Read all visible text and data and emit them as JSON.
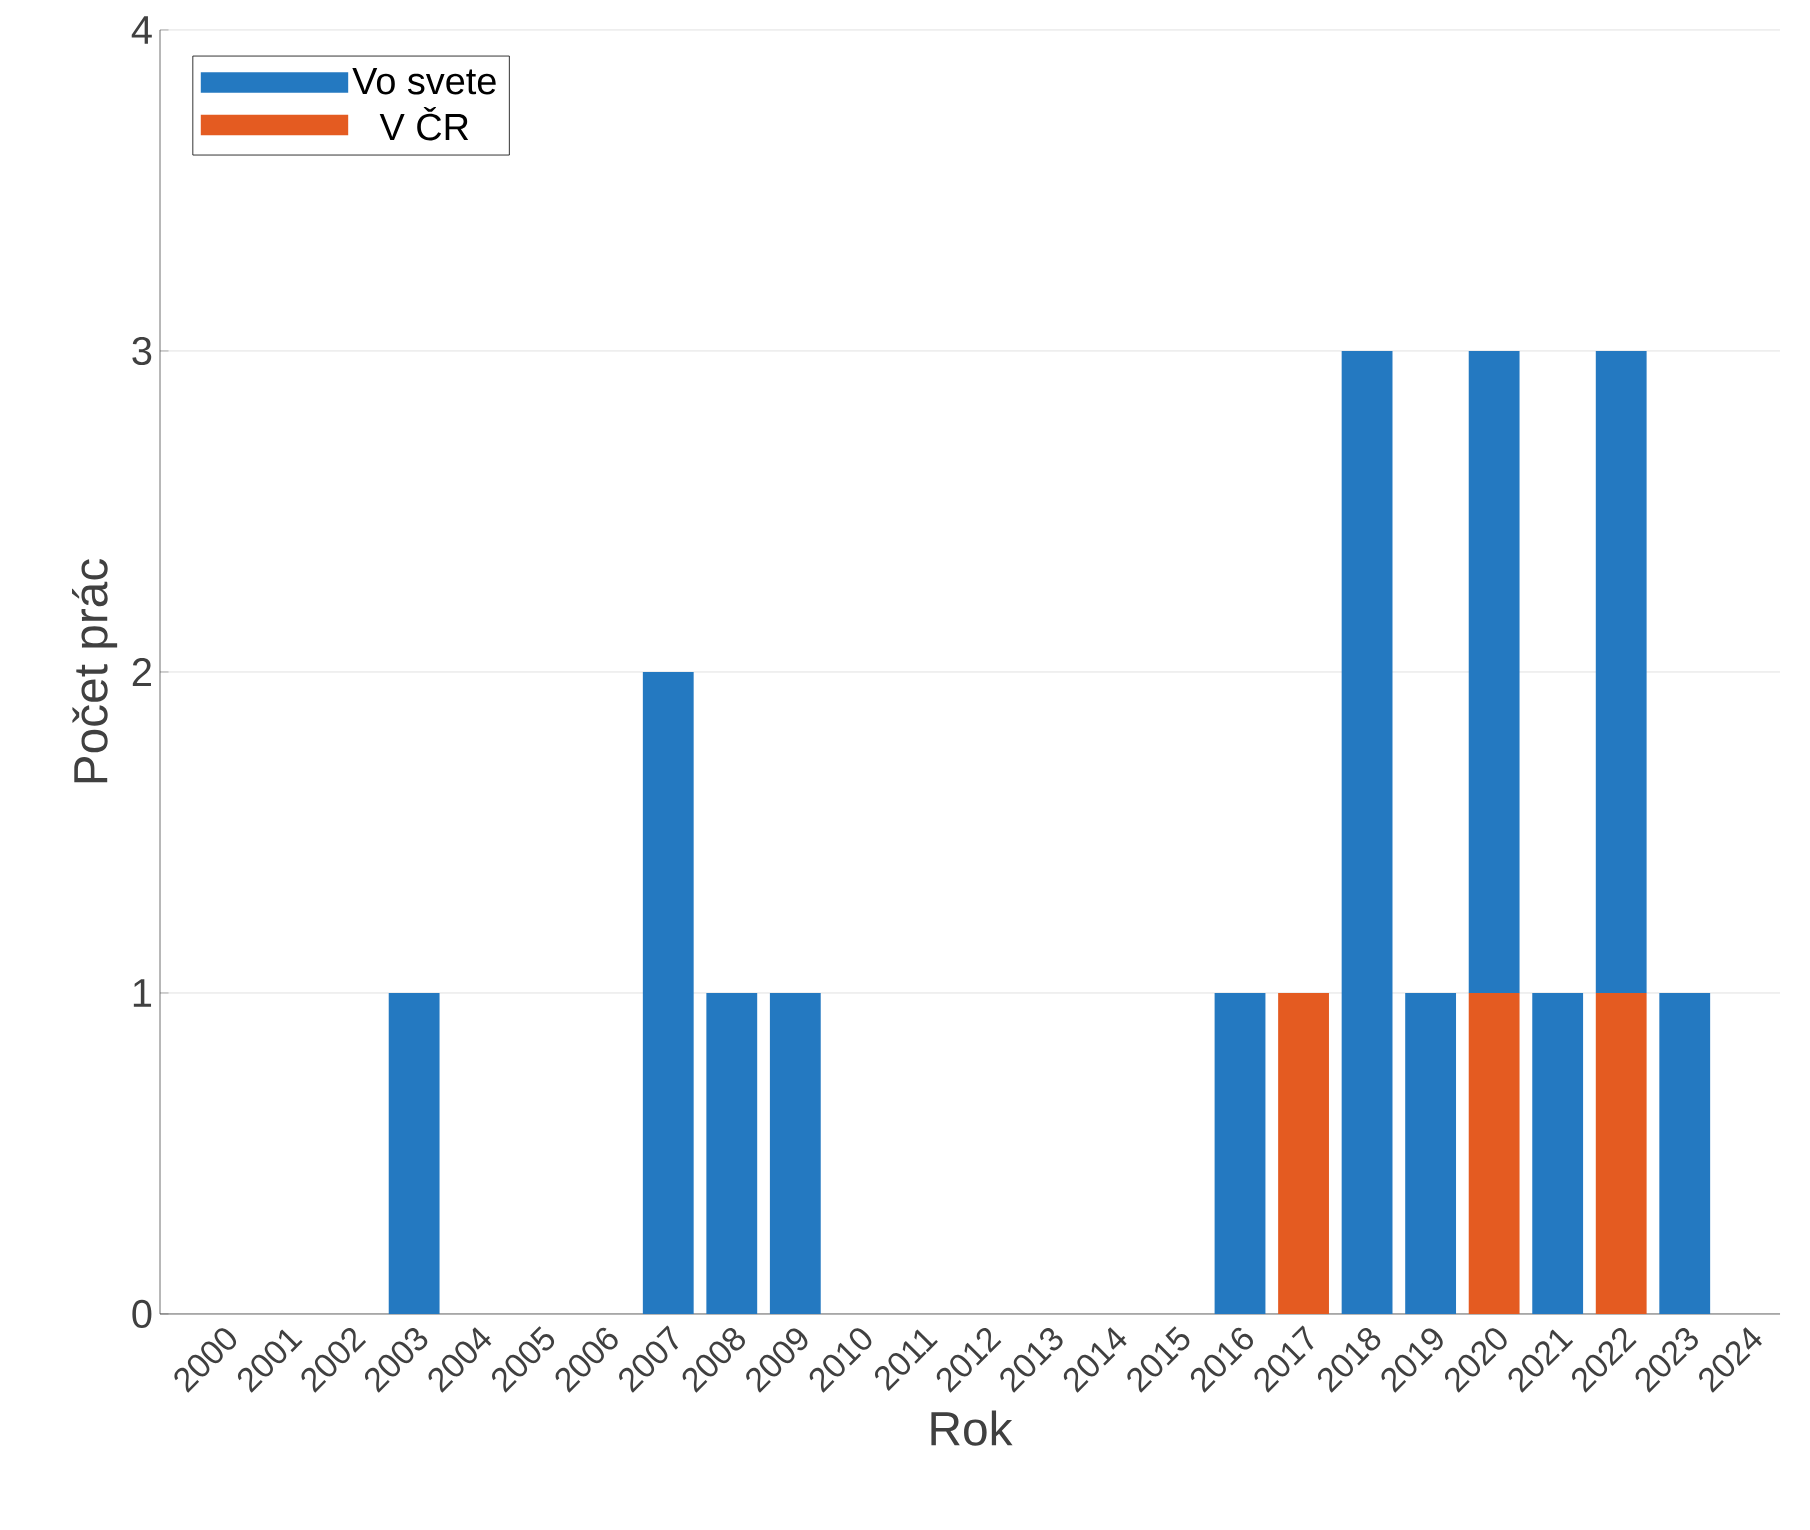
{
  "chart_data": {
    "type": "bar",
    "stacked": true,
    "xlabel": "Rok",
    "ylabel": "Počet prác",
    "categories": [
      "2000",
      "2001",
      "2002",
      "2003",
      "2004",
      "2005",
      "2006",
      "2007",
      "2008",
      "2009",
      "2010",
      "2011",
      "2012",
      "2013",
      "2014",
      "2015",
      "2016",
      "2017",
      "2018",
      "2019",
      "2020",
      "2021",
      "2022",
      "2023",
      "2024"
    ],
    "series": [
      {
        "name": "V ČR",
        "color": "#e45b21",
        "values": [
          0,
          0,
          0,
          0,
          0,
          0,
          0,
          0,
          0,
          0,
          0,
          0,
          0,
          0,
          0,
          0,
          0,
          1,
          0,
          0,
          1,
          0,
          1,
          0,
          0
        ]
      },
      {
        "name": "Vo svete",
        "color": "#2479c1",
        "values": [
          0,
          0,
          0,
          1,
          0,
          0,
          0,
          2,
          1,
          1,
          0,
          0,
          0,
          0,
          0,
          0,
          1,
          0,
          3,
          1,
          2,
          1,
          2,
          1,
          0
        ]
      }
    ],
    "ylim": [
      0,
      4
    ],
    "yticks": [
      0,
      1,
      2,
      3,
      4
    ],
    "grid": "y",
    "legend": "top left"
  }
}
